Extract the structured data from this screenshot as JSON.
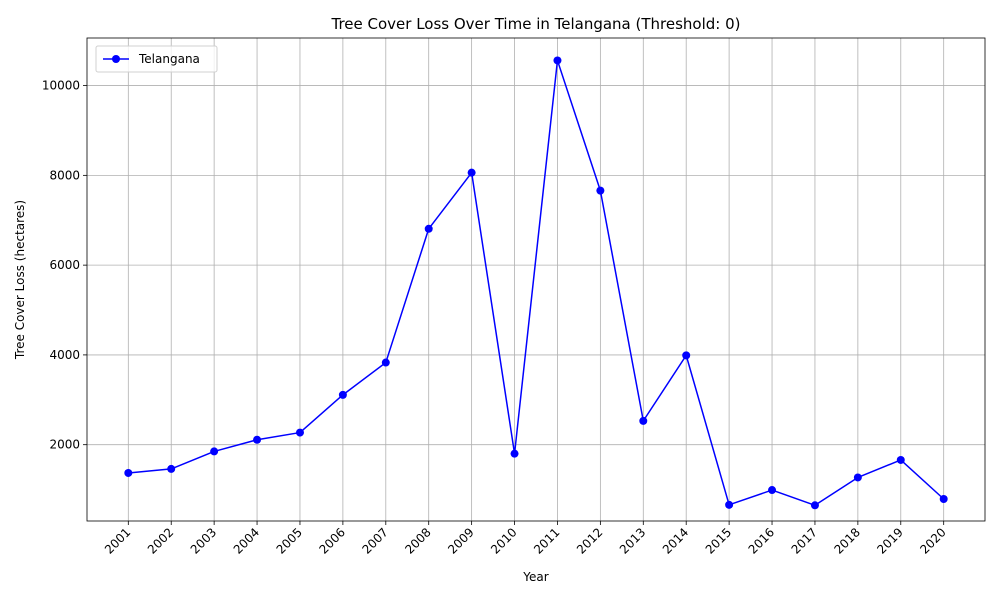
{
  "chart_data": {
    "type": "line",
    "title": "Tree Cover Loss Over Time in Telangana (Threshold: 0)",
    "xlabel": "Year",
    "ylabel": "Tree Cover Loss (hectares)",
    "categories": [
      "2001",
      "2002",
      "2003",
      "2004",
      "2005",
      "2006",
      "2007",
      "2008",
      "2009",
      "2010",
      "2011",
      "2012",
      "2013",
      "2014",
      "2015",
      "2016",
      "2017",
      "2018",
      "2019",
      "2020"
    ],
    "series": [
      {
        "name": "Telangana",
        "color": "#0000ff",
        "marker": "circle",
        "values": [
          1370,
          1460,
          1850,
          2110,
          2270,
          3110,
          3830,
          6810,
          8060,
          1800,
          10560,
          7660,
          2530,
          3990,
          660,
          990,
          650,
          1270,
          1660,
          790
        ]
      }
    ],
    "ylim": [
      300,
      11060
    ],
    "yticks": [
      2000,
      4000,
      6000,
      8000,
      10000
    ],
    "grid": true,
    "legend_position": "top-left",
    "xtick_rotation": 45
  }
}
